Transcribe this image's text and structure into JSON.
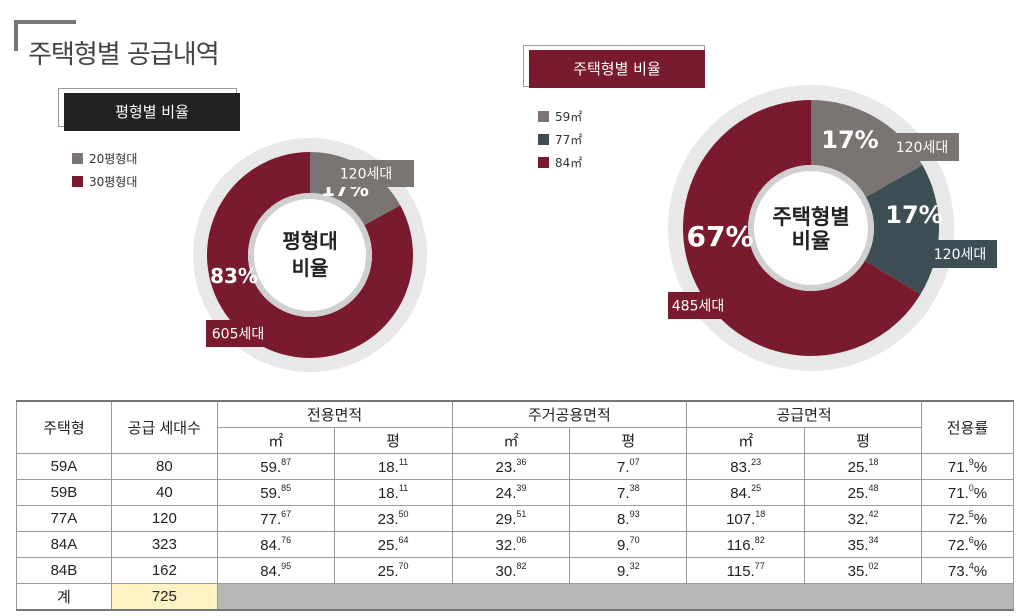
{
  "page_title": "주택형별 공급내역",
  "chart_data": [
    {
      "type": "pie",
      "title": "평형별 비율",
      "center_label": [
        "평형대",
        "비율"
      ],
      "series": [
        {
          "name": "20평형대",
          "value": 17,
          "label": "17%",
          "units_label": "120세대",
          "color": "#7a7573"
        },
        {
          "name": "30평형대",
          "value": 83,
          "label": "83%",
          "units_label": "605세대",
          "color": "#7a1a2e"
        }
      ]
    },
    {
      "type": "pie",
      "title": "주택형별 비율",
      "center_label": [
        "주택형별",
        "비율"
      ],
      "series": [
        {
          "name": "59㎡",
          "value": 17,
          "label": "17%",
          "units_label": "120세대",
          "color": "#7a7573"
        },
        {
          "name": "77㎡",
          "value": 17,
          "label": "17%",
          "units_label": "120세대",
          "color": "#3d4e55"
        },
        {
          "name": "84㎡",
          "value": 67,
          "label": "67%",
          "units_label": "485세대",
          "color": "#7a1a2e"
        }
      ]
    },
    {
      "type": "table",
      "headers": {
        "type": "주택형",
        "households": "공급 세대수",
        "exclusive": "전용면적",
        "residential": "주거공용면적",
        "supply": "공급면적",
        "ratio": "전용률",
        "sqm": "㎡",
        "pyeong": "평"
      },
      "rows": [
        {
          "type": "59A",
          "households": "80",
          "ex_m": [
            "59.",
            "87"
          ],
          "ex_p": [
            "18.",
            "11"
          ],
          "res_m": [
            "23.",
            "36"
          ],
          "res_p": [
            "7.",
            "07"
          ],
          "sup_m": [
            "83.",
            "23"
          ],
          "sup_p": [
            "25.",
            "18"
          ],
          "ratio": [
            "71.",
            "9",
            "%"
          ]
        },
        {
          "type": "59B",
          "households": "40",
          "ex_m": [
            "59.",
            "85"
          ],
          "ex_p": [
            "18.",
            "11"
          ],
          "res_m": [
            "24.",
            "39"
          ],
          "res_p": [
            "7.",
            "38"
          ],
          "sup_m": [
            "84.",
            "25"
          ],
          "sup_p": [
            "25.",
            "48"
          ],
          "ratio": [
            "71.",
            "0",
            "%"
          ]
        },
        {
          "type": "77A",
          "households": "120",
          "ex_m": [
            "77.",
            "67"
          ],
          "ex_p": [
            "23.",
            "50"
          ],
          "res_m": [
            "29.",
            "51"
          ],
          "res_p": [
            "8.",
            "93"
          ],
          "sup_m": [
            "107.",
            "18"
          ],
          "sup_p": [
            "32.",
            "42"
          ],
          "ratio": [
            "72.",
            "5",
            "%"
          ]
        },
        {
          "type": "84A",
          "households": "323",
          "ex_m": [
            "84.",
            "76"
          ],
          "ex_p": [
            "25.",
            "64"
          ],
          "res_m": [
            "32.",
            "06"
          ],
          "res_p": [
            "9.",
            "70"
          ],
          "sup_m": [
            "116.",
            "82"
          ],
          "sup_p": [
            "35.",
            "34"
          ],
          "ratio": [
            "72.",
            "6",
            "%"
          ]
        },
        {
          "type": "84B",
          "households": "162",
          "ex_m": [
            "84.",
            "95"
          ],
          "ex_p": [
            "25.",
            "70"
          ],
          "res_m": [
            "30.",
            "82"
          ],
          "res_p": [
            "9.",
            "32"
          ],
          "sup_m": [
            "115.",
            "77"
          ],
          "sup_p": [
            "35.",
            "02"
          ],
          "ratio": [
            "73.",
            "4",
            "%"
          ]
        }
      ],
      "total": {
        "label": "계",
        "households": "725"
      }
    }
  ]
}
